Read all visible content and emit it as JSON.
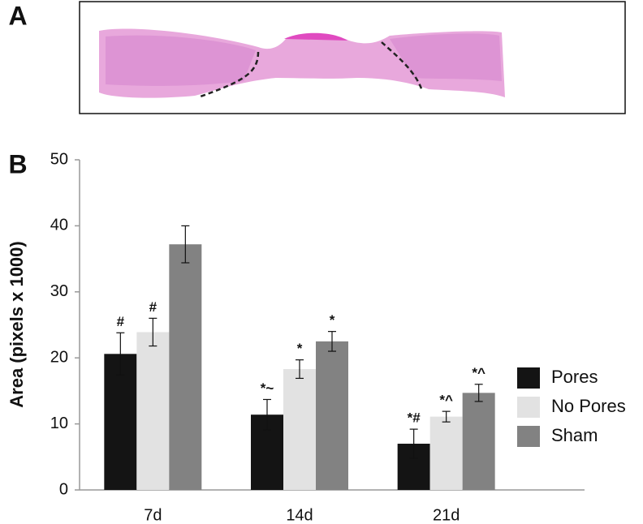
{
  "panel_labels": [
    "A",
    "B"
  ],
  "chart_data": {
    "type": "bar",
    "y_label": "Area (pixels x 1000)",
    "categories": [
      "7d",
      "14d",
      "21d"
    ],
    "series": [
      {
        "name": "Pores",
        "color": "#141414",
        "values": [
          20.6,
          11.4,
          7.0
        ],
        "errors": [
          3.2,
          2.3,
          2.2
        ],
        "annotations": [
          "#",
          "*~",
          "*#"
        ]
      },
      {
        "name": "No Pores",
        "color": "#e2e2e2",
        "values": [
          23.9,
          18.3,
          11.1
        ],
        "errors": [
          2.1,
          1.4,
          0.8
        ],
        "annotations": [
          "#",
          "*",
          "*^"
        ]
      },
      {
        "name": "Sham",
        "color": "#828282",
        "values": [
          37.2,
          22.5,
          14.7
        ],
        "errors": [
          2.8,
          1.5,
          1.3
        ],
        "annotations": [
          null,
          "*",
          "*^"
        ]
      }
    ],
    "ylim": [
      0,
      50
    ],
    "yticks": [
      0,
      10,
      20,
      30,
      40,
      50
    ],
    "legend": "right",
    "grid": false
  }
}
